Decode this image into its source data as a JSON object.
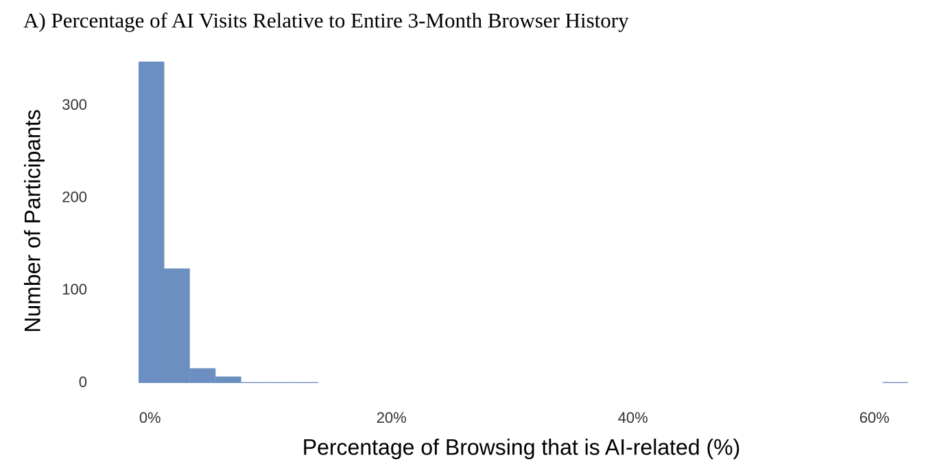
{
  "chart_data": {
    "type": "histogram",
    "title": "A) Percentage of AI Visits Relative to Entire 3-Month Browser History",
    "x_label": "Percentage of Browsing that is AI-related (%)",
    "y_label": "Number of Participants",
    "color": "#6a8fc0",
    "bins": [
      -0.95,
      1.18,
      3.3,
      5.43,
      7.55,
      9.68,
      11.8,
      13.93,
      16.05,
      18.18,
      20.3,
      22.43,
      24.55,
      26.68,
      28.8,
      30.93,
      33.05,
      35.18,
      37.3,
      39.43,
      41.55,
      43.68,
      45.8,
      47.93,
      50.05,
      52.18,
      54.3,
      56.43,
      58.55,
      60.68,
      62.8
    ],
    "values": [
      348,
      124,
      16,
      7,
      1,
      1,
      1,
      0,
      0,
      0,
      0,
      0,
      0,
      0,
      0,
      0,
      0,
      0,
      0,
      0,
      0,
      0,
      0,
      0,
      0,
      0,
      0,
      0,
      0,
      1
    ],
    "xlim": [
      -0.95,
      62.8
    ],
    "ylim": [
      0,
      350
    ],
    "xticks": [
      {
        "value": 0,
        "label": "0%"
      },
      {
        "value": 20,
        "label": "20%"
      },
      {
        "value": 40,
        "label": "40%"
      },
      {
        "value": 60,
        "label": "60%"
      }
    ],
    "yticks": [
      0,
      100,
      200,
      300
    ]
  }
}
